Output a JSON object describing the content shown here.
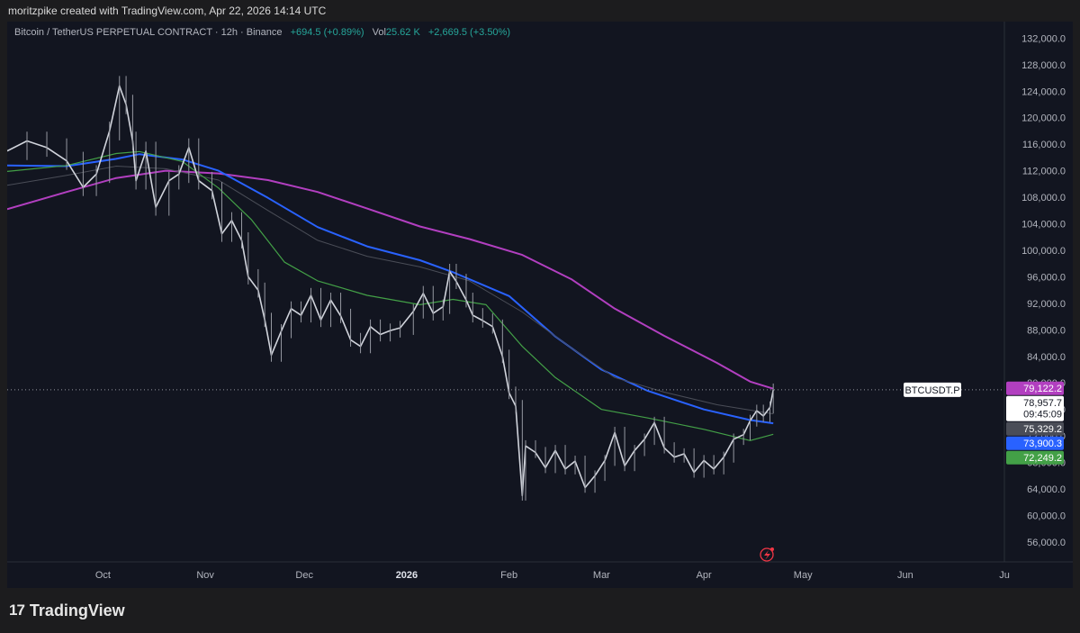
{
  "header": {
    "attribution": "moritzpike created with TradingView.com, Apr 22, 2026 14:14 UTC"
  },
  "legend": {
    "symbol": "Bitcoin / TetherUS PERPETUAL CONTRACT · 12h · Binance",
    "change": "+694.5 (+0.89%)",
    "volume_label": "Vol",
    "volume_value": "25.62 K",
    "change_pct": "+2,669.5 (+3.50%)"
  },
  "footer": {
    "brand": "TradingView",
    "logo_mark": "17"
  },
  "chart_data": {
    "type": "line",
    "symbol_tag": "BTCUSDT.P",
    "y_ticks": [
      56000,
      60000,
      64000,
      68000,
      72000,
      76000,
      80000,
      84000,
      88000,
      92000,
      96000,
      100000,
      104000,
      108000,
      112000,
      116000,
      120000,
      124000,
      128000,
      132000
    ],
    "y_tick_labels": [
      "56,000.0",
      "60,000.0",
      "64,000.0",
      "68,000.0",
      "72,000.0",
      "76,000.0",
      "80,000.0",
      "84,000.0",
      "88,000.0",
      "92,000.0",
      "96,000.0",
      "100,000.0",
      "104,000.0",
      "108,000.0",
      "112,000.0",
      "116,000.0",
      "120,000.0",
      "124,000.0",
      "128,000.0",
      "132,000.0"
    ],
    "ylim": [
      53000,
      134500
    ],
    "x_ticks": [
      {
        "date": "2025-10-01",
        "label": "Oct",
        "bold": false
      },
      {
        "date": "2025-11-01",
        "label": "Nov",
        "bold": false
      },
      {
        "date": "2025-12-01",
        "label": "Dec",
        "bold": false
      },
      {
        "date": "2026-01-01",
        "label": "2026",
        "bold": true
      },
      {
        "date": "2026-02-01",
        "label": "Feb",
        "bold": false
      },
      {
        "date": "2026-03-01",
        "label": "Mar",
        "bold": false
      },
      {
        "date": "2026-04-01",
        "label": "Apr",
        "bold": false
      },
      {
        "date": "2026-05-01",
        "label": "May",
        "bold": false
      },
      {
        "date": "2026-06-01",
        "label": "Jun",
        "bold": false
      },
      {
        "date": "2026-07-01",
        "label": "Ju",
        "bold": false
      }
    ],
    "xlim": [
      "2025-09-02",
      "2026-07-01"
    ],
    "last_price": 78957.7,
    "price_labels": [
      {
        "text": "79,122.2",
        "value": 79122.2,
        "color": "#b23fc0",
        "text_color": "#ffffff"
      },
      {
        "text": "78,957.7",
        "sub": "09:45:09",
        "value": 78957.7,
        "color": "#ffffff",
        "text_color": "#131722"
      },
      {
        "text": "75,329.2",
        "value": 75329.2,
        "color": "#4a4d57",
        "text_color": "#ffffff"
      },
      {
        "text": "73,900.3",
        "value": 73900.3,
        "color": "#2962ff",
        "text_color": "#ffffff"
      },
      {
        "text": "72,249.2",
        "value": 72249.2,
        "color": "#43a047",
        "text_color": "#ffffff"
      }
    ],
    "price_series": {
      "name": "BTCUSDT.P",
      "color": "#d1d4dc",
      "points": [
        [
          "2025-09-02",
          115000
        ],
        [
          "2025-09-08",
          116500
        ],
        [
          "2025-09-14",
          115500
        ],
        [
          "2025-09-20",
          113500
        ],
        [
          "2025-09-25",
          109500
        ],
        [
          "2025-09-29",
          111500
        ],
        [
          "2025-10-03",
          118000
        ],
        [
          "2025-10-06",
          124800
        ],
        [
          "2025-10-08",
          122000
        ],
        [
          "2025-10-10",
          116500
        ],
        [
          "2025-10-11",
          110500
        ],
        [
          "2025-10-14",
          115000
        ],
        [
          "2025-10-17",
          106500
        ],
        [
          "2025-10-21",
          110500
        ],
        [
          "2025-10-24",
          111500
        ],
        [
          "2025-10-27",
          115500
        ],
        [
          "2025-10-30",
          110500
        ],
        [
          "2025-11-03",
          109000
        ],
        [
          "2025-11-06",
          102500
        ],
        [
          "2025-11-09",
          104500
        ],
        [
          "2025-11-12",
          101500
        ],
        [
          "2025-11-14",
          96000
        ],
        [
          "2025-11-17",
          94000
        ],
        [
          "2025-11-19",
          89500
        ],
        [
          "2025-11-21",
          84200
        ],
        [
          "2025-11-24",
          87800
        ],
        [
          "2025-11-27",
          91200
        ],
        [
          "2025-11-30",
          90200
        ],
        [
          "2025-12-03",
          93200
        ],
        [
          "2025-12-06",
          89500
        ],
        [
          "2025-12-09",
          92500
        ],
        [
          "2025-12-12",
          90100
        ],
        [
          "2025-12-15",
          86500
        ],
        [
          "2025-12-18",
          85500
        ],
        [
          "2025-12-21",
          88500
        ],
        [
          "2025-12-24",
          87300
        ],
        [
          "2025-12-27",
          87900
        ],
        [
          "2025-12-30",
          88300
        ],
        [
          "2026-01-03",
          90800
        ],
        [
          "2026-01-06",
          93500
        ],
        [
          "2026-01-09",
          90500
        ],
        [
          "2026-01-12",
          91500
        ],
        [
          "2026-01-14",
          96800
        ],
        [
          "2026-01-16",
          95300
        ],
        [
          "2026-01-19",
          92500
        ],
        [
          "2026-01-21",
          90200
        ],
        [
          "2026-01-24",
          89400
        ],
        [
          "2026-01-27",
          88500
        ],
        [
          "2026-01-30",
          84000
        ],
        [
          "2026-02-01",
          78500
        ],
        [
          "2026-02-03",
          76500
        ],
        [
          "2026-02-05",
          63000
        ],
        [
          "2026-02-06",
          70500
        ],
        [
          "2026-02-09",
          69500
        ],
        [
          "2026-02-12",
          67200
        ],
        [
          "2026-02-15",
          69800
        ],
        [
          "2026-02-18",
          67000
        ],
        [
          "2026-02-21",
          68200
        ],
        [
          "2026-02-24",
          64200
        ],
        [
          "2026-02-27",
          66000
        ],
        [
          "2026-03-02",
          68300
        ],
        [
          "2026-03-05",
          72500
        ],
        [
          "2026-03-08",
          67500
        ],
        [
          "2026-03-11",
          69800
        ],
        [
          "2026-03-14",
          71500
        ],
        [
          "2026-03-17",
          74000
        ],
        [
          "2026-03-20",
          70200
        ],
        [
          "2026-03-23",
          68800
        ],
        [
          "2026-03-26",
          69300
        ],
        [
          "2026-03-29",
          66500
        ],
        [
          "2026-04-01",
          68300
        ],
        [
          "2026-04-04",
          67000
        ],
        [
          "2026-04-07",
          68800
        ],
        [
          "2026-04-10",
          71500
        ],
        [
          "2026-04-13",
          72200
        ],
        [
          "2026-04-15",
          74300
        ],
        [
          "2026-04-17",
          75800
        ],
        [
          "2026-04-19",
          75000
        ],
        [
          "2026-04-21",
          76300
        ],
        [
          "2026-04-22",
          78957.7
        ]
      ]
    },
    "series": [
      {
        "color": "#b23fc0",
        "width": 2,
        "points": [
          [
            "2025-09-02",
            106200
          ],
          [
            "2025-09-20",
            108800
          ],
          [
            "2025-10-05",
            110900
          ],
          [
            "2025-10-20",
            112000
          ],
          [
            "2025-11-05",
            111600
          ],
          [
            "2025-11-20",
            110600
          ],
          [
            "2025-12-05",
            108800
          ],
          [
            "2025-12-20",
            106300
          ],
          [
            "2026-01-05",
            103600
          ],
          [
            "2026-01-20",
            101700
          ],
          [
            "2026-02-05",
            99300
          ],
          [
            "2026-02-20",
            95600
          ],
          [
            "2026-03-05",
            91200
          ],
          [
            "2026-03-20",
            87100
          ],
          [
            "2026-04-05",
            83000
          ],
          [
            "2026-04-15",
            80200
          ],
          [
            "2026-04-22",
            79122.2
          ]
        ]
      },
      {
        "color": "#2962ff",
        "width": 2,
        "points": [
          [
            "2025-09-02",
            112800
          ],
          [
            "2025-09-20",
            112700
          ],
          [
            "2025-10-05",
            113800
          ],
          [
            "2025-10-12",
            114500
          ],
          [
            "2025-10-25",
            113700
          ],
          [
            "2025-11-05",
            112000
          ],
          [
            "2025-11-20",
            107900
          ],
          [
            "2025-12-05",
            103500
          ],
          [
            "2025-12-20",
            100600
          ],
          [
            "2026-01-05",
            98500
          ],
          [
            "2026-01-15",
            96700
          ],
          [
            "2026-02-01",
            93100
          ],
          [
            "2026-02-15",
            87000
          ],
          [
            "2026-03-01",
            82000
          ],
          [
            "2026-03-15",
            78800
          ],
          [
            "2026-04-01",
            76000
          ],
          [
            "2026-04-15",
            74400
          ],
          [
            "2026-04-22",
            73900.3
          ]
        ]
      },
      {
        "color": "#4a4d57",
        "width": 1,
        "points": [
          [
            "2025-09-02",
            109800
          ],
          [
            "2025-09-20",
            111300
          ],
          [
            "2025-10-05",
            112700
          ],
          [
            "2025-10-20",
            112300
          ],
          [
            "2025-11-05",
            110600
          ],
          [
            "2025-11-20",
            106000
          ],
          [
            "2025-12-05",
            101500
          ],
          [
            "2025-12-20",
            99100
          ],
          [
            "2026-01-05",
            97500
          ],
          [
            "2026-01-20",
            95400
          ],
          [
            "2026-02-05",
            90700
          ],
          [
            "2026-02-20",
            85200
          ],
          [
            "2026-03-05",
            80800
          ],
          [
            "2026-03-20",
            78600
          ],
          [
            "2026-04-05",
            76700
          ],
          [
            "2026-04-22",
            75329.2
          ]
        ]
      },
      {
        "color": "#43a047",
        "width": 1.2,
        "points": [
          [
            "2025-09-02",
            111900
          ],
          [
            "2025-09-20",
            112800
          ],
          [
            "2025-10-05",
            114600
          ],
          [
            "2025-10-12",
            114900
          ],
          [
            "2025-10-25",
            113400
          ],
          [
            "2025-11-05",
            109400
          ],
          [
            "2025-11-15",
            104600
          ],
          [
            "2025-11-25",
            98200
          ],
          [
            "2025-12-05",
            95400
          ],
          [
            "2025-12-20",
            93200
          ],
          [
            "2026-01-05",
            91800
          ],
          [
            "2026-01-15",
            92600
          ],
          [
            "2026-01-25",
            91800
          ],
          [
            "2026-02-05",
            85500
          ],
          [
            "2026-02-15",
            80800
          ],
          [
            "2026-03-01",
            76000
          ],
          [
            "2026-03-15",
            74700
          ],
          [
            "2026-04-01",
            73000
          ],
          [
            "2026-04-15",
            71300
          ],
          [
            "2026-04-22",
            72249.2
          ]
        ]
      }
    ]
  }
}
